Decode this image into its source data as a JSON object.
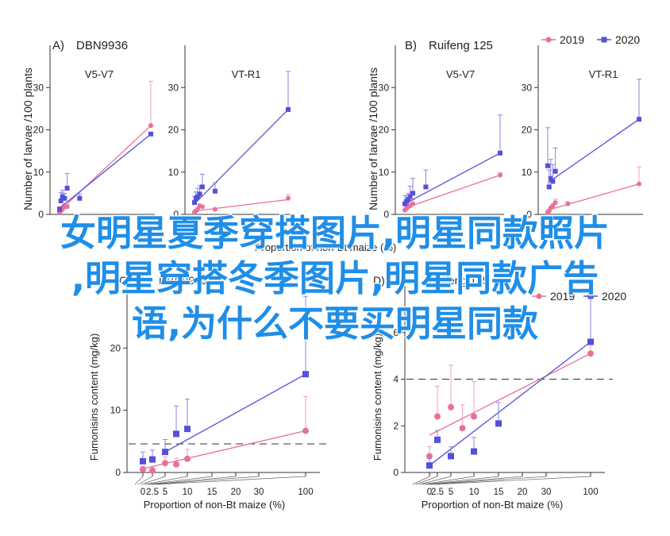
{
  "colors": {
    "series_2019": "#e8709a",
    "series_2020": "#5550d8",
    "axis": "#333333",
    "errbar_2019": "#f0a0b8",
    "errbar_2020": "#8a85e0",
    "dashed": "#333333",
    "overlay": "#1f8ee8"
  },
  "legend_top": {
    "items": [
      "2019",
      "2020"
    ]
  },
  "legend_bottom": {
    "items": [
      "2019",
      "2020"
    ]
  },
  "overlay_text": {
    "line1": "女明星夏季穿搭图片,明星同款照片",
    "line2": ",明星穿搭冬季图片,明星同款广告",
    "line3": "语,为什么不要买明星同款"
  },
  "chart_data": [
    {
      "id": "A1",
      "type": "scatter",
      "panel_label": "A)",
      "panel_title": "DBN9936",
      "subtitle": "V5-V7",
      "ylabel": "Number of larvae /100 plants",
      "ylim": [
        0,
        40
      ],
      "yticks": [
        0,
        10,
        20,
        30
      ],
      "xticks": [],
      "x": [
        0,
        1,
        2,
        3,
        4,
        5,
        8,
        10,
        15,
        20,
        30,
        100
      ],
      "series": [
        {
          "name": "2019",
          "points": [
            [
              0,
              0.5,
              0.3
            ],
            [
              0.7,
              0.8,
              0.4
            ],
            [
              1.5,
              1.3,
              0.5
            ],
            [
              2.5,
              1.8,
              0.6
            ],
            [
              3.8,
              1.8,
              0.5
            ],
            [
              100,
              21.0,
              10.5
            ]
          ],
          "fit": [
            [
              0,
              0.8
            ],
            [
              100,
              21.0
            ]
          ]
        },
        {
          "name": "2020",
          "points": [
            [
              0,
              1.2,
              0.6
            ],
            [
              0.7,
              3.2,
              2.0
            ],
            [
              1.5,
              4.2,
              1.5
            ],
            [
              2.5,
              3.8,
              1.2
            ],
            [
              3.8,
              6.2,
              3.5
            ],
            [
              10,
              3.8,
              1.0
            ],
            [
              100,
              19.0,
              0
            ]
          ],
          "fit": [
            [
              0,
              1.5
            ],
            [
              100,
              19.0
            ]
          ]
        }
      ]
    },
    {
      "id": "A2",
      "type": "scatter",
      "subtitle": "VT-R1",
      "ylabel": "",
      "ylim": [
        0,
        40
      ],
      "yticks": [
        0,
        10,
        20,
        30
      ],
      "xticks": [],
      "series": [
        {
          "name": "2019",
          "points": [
            [
              0,
              0.5,
              0.3
            ],
            [
              0.7,
              0.8,
              0.4
            ],
            [
              1.5,
              1.2,
              0.4
            ],
            [
              2.5,
              2.0,
              0.5
            ],
            [
              3.8,
              1.8,
              0.4
            ],
            [
              10,
              1.2,
              0.3
            ],
            [
              100,
              3.8,
              0.8
            ]
          ],
          "fit": [
            [
              0,
              0.8
            ],
            [
              100,
              3.5
            ]
          ]
        },
        {
          "name": "2020",
          "points": [
            [
              0,
              2.8,
              1.5
            ],
            [
              0.7,
              3.8,
              1.5
            ],
            [
              1.5,
              4.2,
              2.0
            ],
            [
              2.5,
              4.8,
              2.0
            ],
            [
              3.8,
              6.5,
              3.0
            ],
            [
              10,
              5.5,
              2.0
            ],
            [
              100,
              24.8,
              9.0
            ]
          ],
          "fit": [
            [
              0,
              2.5
            ],
            [
              100,
              24.8
            ]
          ]
        }
      ]
    },
    {
      "id": "B1",
      "type": "scatter",
      "panel_label": "B)",
      "panel_title": "Ruifeng 125",
      "subtitle": "V5-V7",
      "ylabel": "Number of larvae /100 plants",
      "ylim": [
        0,
        40
      ],
      "yticks": [
        0,
        10,
        20,
        30
      ],
      "xticks": [],
      "series": [
        {
          "name": "2019",
          "points": [
            [
              0,
              1.0,
              0.5
            ],
            [
              0.7,
              1.3,
              0.5
            ],
            [
              1.5,
              1.8,
              0.6
            ],
            [
              2.5,
              2.0,
              0.8
            ],
            [
              3.8,
              2.5,
              1.0
            ],
            [
              100,
              9.3,
              0.6
            ]
          ],
          "fit": [
            [
              0,
              1.5
            ],
            [
              100,
              9.3
            ]
          ]
        },
        {
          "name": "2020",
          "points": [
            [
              0,
              2.5,
              2.0
            ],
            [
              0.7,
              3.0,
              1.5
            ],
            [
              1.5,
              3.5,
              1.5
            ],
            [
              2.5,
              4.2,
              2.5
            ],
            [
              3.8,
              5.0,
              3.5
            ],
            [
              10,
              6.5,
              4.0
            ],
            [
              100,
              14.5,
              9.0
            ]
          ],
          "fit": [
            [
              0,
              2.5
            ],
            [
              100,
              14.5
            ]
          ]
        }
      ]
    },
    {
      "id": "B2",
      "type": "scatter",
      "subtitle": "VT-R1",
      "ylabel": "",
      "ylim": [
        0,
        40
      ],
      "yticks": [
        0,
        10,
        20,
        30
      ],
      "xticks": [],
      "series": [
        {
          "name": "2019",
          "points": [
            [
              0,
              0.5,
              0.5
            ],
            [
              0.7,
              0.8,
              0.5
            ],
            [
              1.5,
              1.5,
              0.5
            ],
            [
              2.5,
              2.0,
              0.6
            ],
            [
              3.8,
              2.8,
              0.8
            ],
            [
              10,
              2.5,
              0.5
            ],
            [
              100,
              7.2,
              4.0
            ]
          ],
          "fit": [
            [
              0,
              1.0
            ],
            [
              100,
              7.2
            ]
          ]
        },
        {
          "name": "2020",
          "points": [
            [
              0,
              11.5,
              9.0
            ],
            [
              0.7,
              6.5,
              4.0
            ],
            [
              1.5,
              8.5,
              4.5
            ],
            [
              2.5,
              7.8,
              4.0
            ],
            [
              3.8,
              10.2,
              5.5
            ],
            [
              100,
              22.5,
              9.5
            ]
          ],
          "fit": [
            [
              0,
              7.5
            ],
            [
              100,
              22.5
            ]
          ]
        }
      ]
    },
    {
      "id": "C",
      "type": "scatter",
      "panel_label": "C)",
      "panel_title": "DBN9936",
      "ylabel": "Fumonisins content (mg/kg)",
      "xlabel": "Proportion of non-Bt maize (%)",
      "ylim": [
        0,
        30
      ],
      "yticks": [
        0,
        10,
        20
      ],
      "x_tick_values": [
        0,
        2.5,
        5,
        10,
        15,
        20,
        30,
        100
      ],
      "x_tick_labels": [
        "0",
        "2.5",
        "5",
        "10",
        "15",
        "20",
        "30",
        "100"
      ],
      "threshold": 4.6,
      "series": [
        {
          "name": "2019",
          "points": [
            [
              0,
              0.5,
              0.5
            ],
            [
              2.5,
              0.3,
              0.5
            ],
            [
              5,
              1.5,
              1.0
            ],
            [
              7.5,
              1.3,
              1.0
            ],
            [
              10,
              2.2,
              1.5
            ],
            [
              100,
              6.7,
              5.5
            ]
          ],
          "fit": [
            [
              0,
              0.6
            ],
            [
              100,
              6.7
            ]
          ]
        },
        {
          "name": "2020",
          "points": [
            [
              0,
              1.8,
              1.5
            ],
            [
              2.5,
              2.1,
              1.5
            ],
            [
              5,
              3.3,
              2.0
            ],
            [
              7.5,
              6.2,
              4.5
            ],
            [
              10,
              7.0,
              4.8
            ],
            [
              100,
              15.8,
              12.5
            ]
          ],
          "fit": [
            [
              5,
              3.3
            ],
            [
              100,
              15.8
            ]
          ]
        }
      ]
    },
    {
      "id": "D",
      "type": "scatter",
      "panel_label": "D)",
      "panel_title": "Ruifeng 125",
      "ylabel": "Fumonisins content (mg/kg)",
      "xlabel": "Proportion of non-Bt maize (%)",
      "ylim": [
        0,
        8
      ],
      "yticks": [
        0,
        2,
        4,
        6
      ],
      "x_tick_values": [
        0,
        2.5,
        5,
        10,
        15,
        20,
        30,
        100
      ],
      "x_tick_labels": [
        "0",
        "2.5",
        "5",
        "10",
        "15",
        "20",
        "30",
        "100"
      ],
      "threshold": 4.0,
      "series": [
        {
          "name": "2019",
          "points": [
            [
              0,
              0.7,
              0.4
            ],
            [
              2.5,
              2.4,
              1.3
            ],
            [
              5,
              2.8,
              1.8
            ],
            [
              7.5,
              1.9,
              1.0
            ],
            [
              10,
              2.4,
              1.5
            ],
            [
              100,
              5.1,
              2.5
            ]
          ],
          "fit": [
            [
              0,
              1.6
            ],
            [
              100,
              5.1
            ]
          ]
        },
        {
          "name": "2020",
          "points": [
            [
              0,
              0.3,
              0.3
            ],
            [
              2.5,
              1.4,
              0.4
            ],
            [
              5,
              0.7,
              0.4
            ],
            [
              10,
              0.9,
              0.6
            ],
            [
              15,
              2.1,
              0.9
            ],
            [
              100,
              5.6,
              2.5
            ]
          ],
          "fit": [
            [
              0,
              0.3
            ],
            [
              100,
              5.6
            ]
          ]
        }
      ]
    }
  ]
}
